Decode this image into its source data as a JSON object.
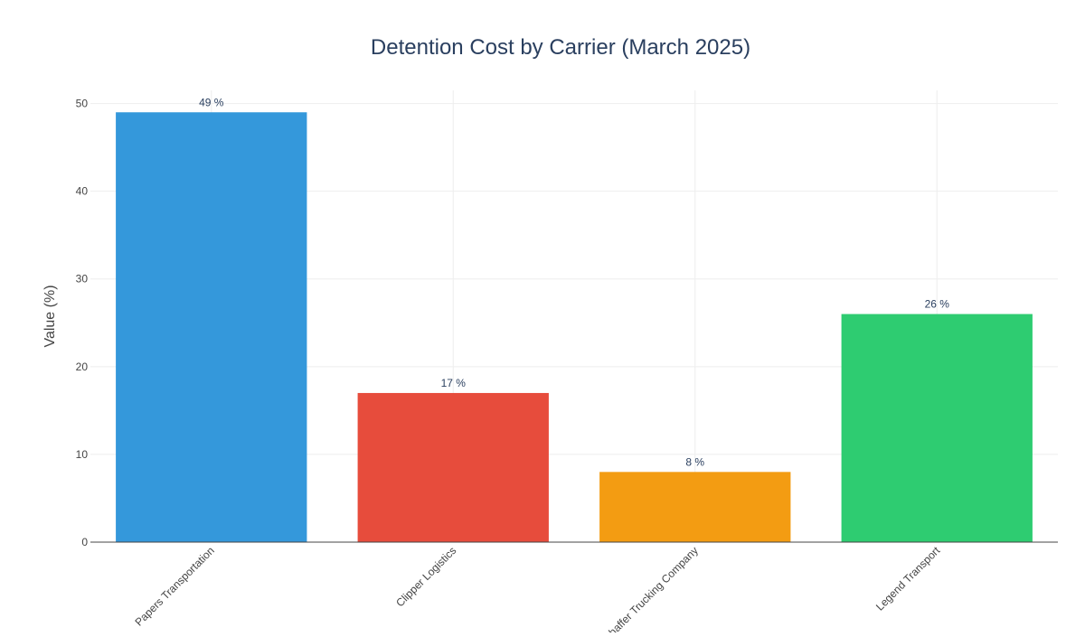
{
  "chart_data": {
    "type": "bar",
    "title": "Detention Cost by Carrier (March 2025)",
    "xlabel": "",
    "ylabel": "Value (%)",
    "categories": [
      "Papers Transportation",
      "Clipper Logistics",
      "Shaffer Trucking Company",
      "Legend Transport"
    ],
    "values": [
      49,
      17,
      8,
      26
    ],
    "data_labels": [
      "49 %",
      "17 %",
      "8 %",
      "26 %"
    ],
    "colors": [
      "#3498db",
      "#e74c3c",
      "#f39c12",
      "#2ecc71"
    ],
    "ylim": [
      0,
      51.5
    ],
    "yticks": [
      0,
      10,
      20,
      30,
      40,
      50
    ],
    "grid": true,
    "legend": "none"
  }
}
